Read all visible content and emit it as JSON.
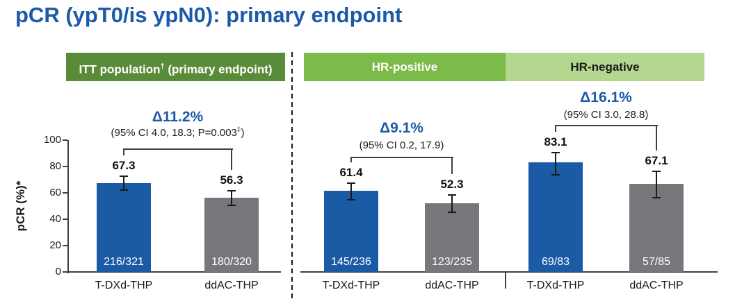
{
  "title": "pCR (ypT0/is ypN0): primary endpoint",
  "colors": {
    "title_blue": "#1c5aa8",
    "delta_blue": "#1c5aa8",
    "bar_blue": "#1b5aa5",
    "bar_gray": "#76777b",
    "header_dark_green": "#5a8b39",
    "header_mid_green": "#7cbb4a",
    "header_light_green": "#b3d78f",
    "axis_color": "#3f3f3f",
    "error_bar_color": "#1a1a1a",
    "bracket_color": "#3f3f3f",
    "count_text": "#ffffff"
  },
  "chart_data": {
    "type": "bar",
    "title": "pCR (ypT0/is ypN0): primary endpoint",
    "ylabel": "pCR (%)*",
    "ylim": [
      0,
      100
    ],
    "yticks": [
      0,
      20,
      40,
      60,
      80,
      100
    ],
    "grid": false,
    "legend": "none",
    "panels": [
      {
        "id": "itt",
        "header": {
          "pre": "ITT population",
          "sup": "†",
          "post": " (primary endpoint)"
        },
        "delta": "Δ11.2%",
        "ci_pre": "(95% CI 4.0, 18.3; P=0.003",
        "ci_sup": "‡",
        "ci_post": ")",
        "series": [
          {
            "name": "T-DXd-THP",
            "value": 67.3,
            "count": "216/321",
            "ci": [
              62.0,
              72.5
            ],
            "color": "blue"
          },
          {
            "name": "ddAC-THP",
            "value": 56.3,
            "count": "180/320",
            "ci": [
              50.5,
              61.5
            ],
            "color": "gray"
          }
        ]
      },
      {
        "id": "hr_positive",
        "header": {
          "pre": "HR-positive",
          "sup": "",
          "post": ""
        },
        "delta": "Δ9.1%",
        "ci_pre": "(95% CI 0.2, 17.9)",
        "ci_sup": "",
        "ci_post": "",
        "series": [
          {
            "name": "T-DXd-THP",
            "value": 61.4,
            "count": "145/236",
            "ci": [
              55.0,
              67.5
            ],
            "color": "blue"
          },
          {
            "name": "ddAC-THP",
            "value": 52.3,
            "count": "123/235",
            "ci": [
              45.5,
              58.5
            ],
            "color": "gray"
          }
        ]
      },
      {
        "id": "hr_negative",
        "header": {
          "pre": "HR-negative",
          "sup": "",
          "post": ""
        },
        "delta": "Δ16.1%",
        "ci_pre": "(95% CI 3.0, 28.8)",
        "ci_sup": "",
        "ci_post": "",
        "series": [
          {
            "name": "T-DXd-THP",
            "value": 83.1,
            "count": "69/83",
            "ci": [
              73.5,
              90.5
            ],
            "color": "blue"
          },
          {
            "name": "ddAC-THP",
            "value": 67.1,
            "count": "57/85",
            "ci": [
              56.5,
              76.5
            ],
            "color": "gray"
          }
        ]
      }
    ]
  }
}
